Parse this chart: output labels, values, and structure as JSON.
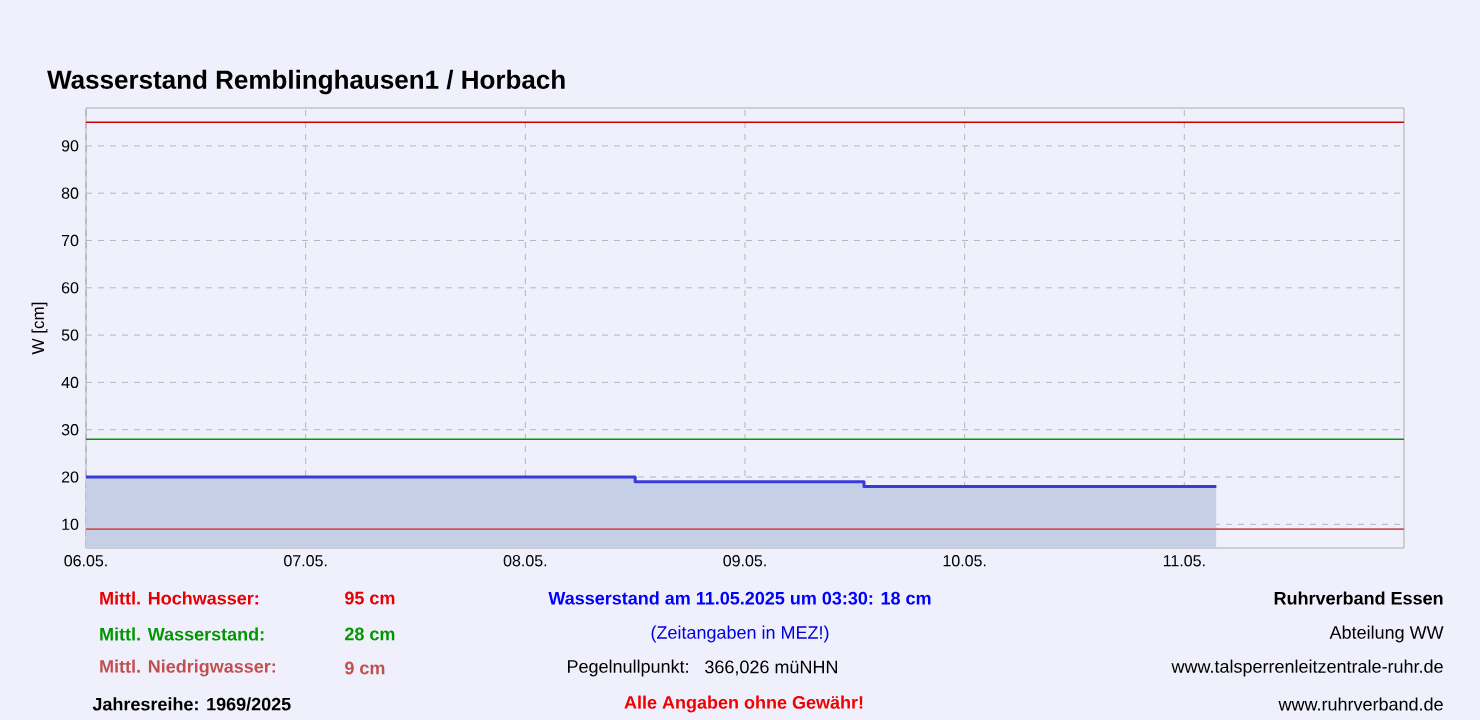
{
  "chart_data": {
    "type": "area",
    "title": "Wasserstand Remblinghausen1 / Horbach",
    "ylabel": "W [cm]",
    "series": [
      {
        "color": "#3a3ad8",
        "x": [
          "2025-05-06T00:00",
          "2025-05-08T12:00",
          "2025-05-08T12:00",
          "2025-05-09T13:00",
          "2025-05-09T13:00",
          "2025-05-11T03:30"
        ],
        "values": [
          20,
          20,
          19,
          19,
          18,
          18
        ]
      }
    ],
    "xlim": [
      "2025-05-06",
      "2025-05-12"
    ],
    "xticks": [
      {
        "value": "2025-05-06",
        "label": "06.05."
      },
      {
        "value": "2025-05-07",
        "label": "07.05."
      },
      {
        "value": "2025-05-08",
        "label": "08.05."
      },
      {
        "value": "2025-05-09",
        "label": "09.05."
      },
      {
        "value": "2025-05-10",
        "label": "10.05."
      },
      {
        "value": "2025-05-11",
        "label": "11.05."
      }
    ],
    "ylim": [
      5,
      98
    ],
    "yticks": [
      10,
      20,
      30,
      40,
      50,
      60,
      70,
      80,
      90
    ],
    "grid": true,
    "ref_lines": [
      {
        "axis": "y",
        "value": 95,
        "label": "Mittl. Hochwasser:",
        "color": "#cc0000"
      },
      {
        "axis": "y",
        "value": 28,
        "label": "Mittl. Wasserstand:",
        "color": "#009900"
      },
      {
        "axis": "y",
        "value": 9,
        "label": "Mittl. Niedrigwasser:",
        "color": "#cc5555"
      }
    ],
    "annotations": [
      "95 cm",
      "28 cm",
      "9 cm",
      "Jahresreihe: 1969/2025",
      "Wasserstand am 11.05.2025 um 03:30: 18 cm",
      "(Zeitangaben in MEZ!)",
      "Pegelnullpunkt:",
      "366,026 müNHN",
      "Alle Angaben ohne Gewähr!",
      "Ruhrverband Essen",
      "Abteilung WW",
      "www.talsperrenleitzentrale-ruhr.de",
      "www.ruhrverband.de"
    ]
  }
}
